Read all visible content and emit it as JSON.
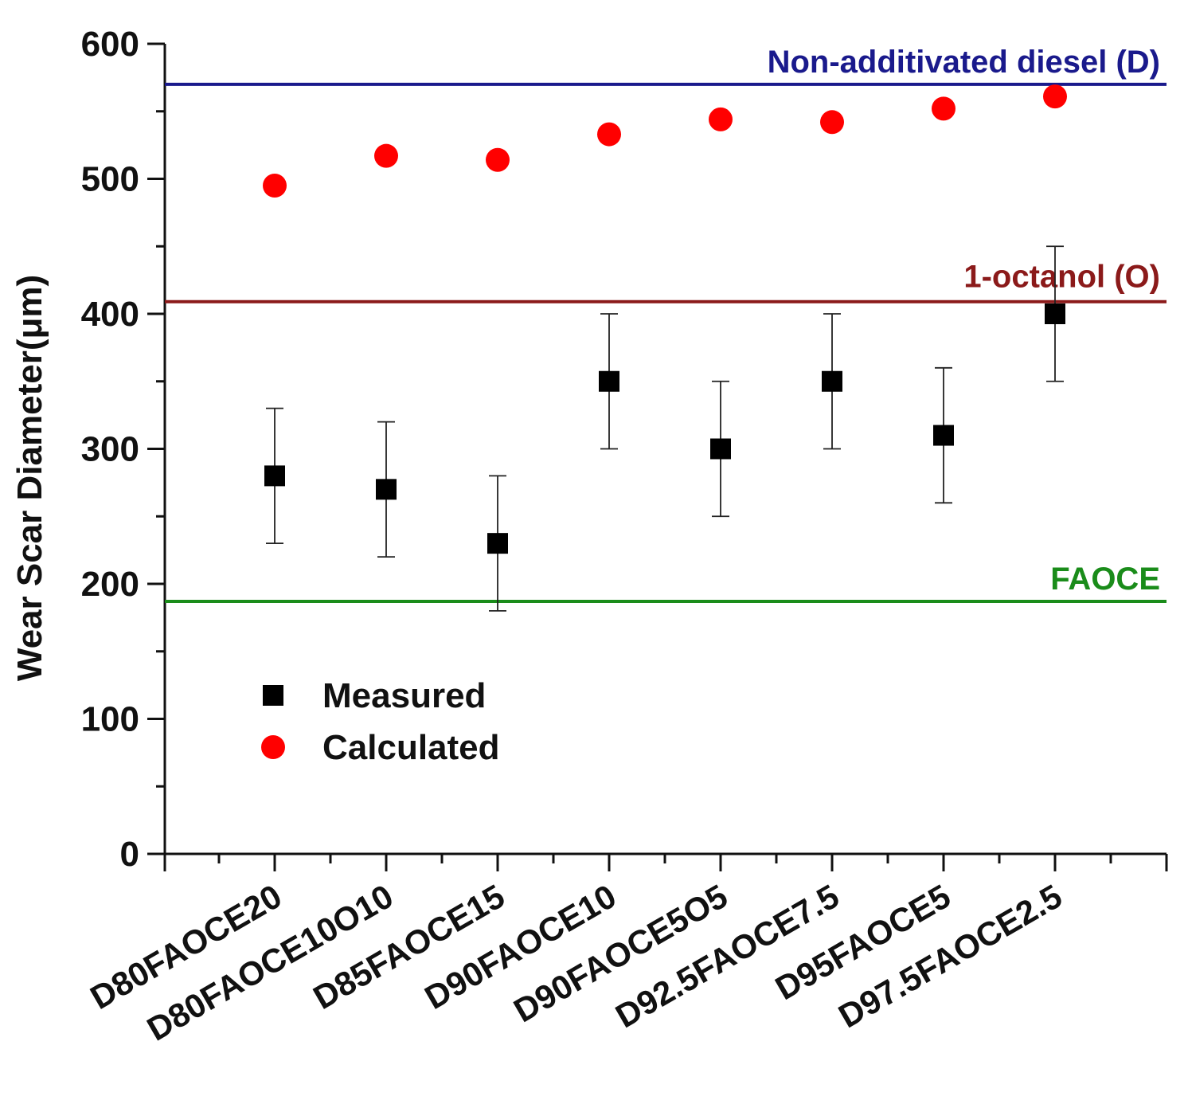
{
  "chart_data": {
    "type": "scatter",
    "categories": [
      "D80FAOCE20",
      "D80FAOCE10O10",
      "D85FAOCE15",
      "D90FAOCE10",
      "D90FAOCE5O5",
      "D92.5FAOCE7.5",
      "D95FAOCE5",
      "D97.5FAOCE2.5"
    ],
    "series": [
      {
        "name": "Measured",
        "marker": "square",
        "color": "#000000",
        "values": [
          280,
          270,
          230,
          350,
          300,
          350,
          310,
          400
        ],
        "error": [
          50,
          50,
          50,
          50,
          50,
          50,
          50,
          50
        ]
      },
      {
        "name": "Calculated",
        "marker": "circle",
        "color": "#ff0000",
        "values": [
          495,
          517,
          514,
          533,
          544,
          542,
          552,
          561
        ]
      }
    ],
    "reference_lines": [
      {
        "label": "Non-additivated diesel (D)",
        "value": 570,
        "color": "#1a1a8c"
      },
      {
        "label": "1-octanol (O)",
        "value": 409,
        "color": "#8b1a1a"
      },
      {
        "label": "FAOCE",
        "value": 187,
        "color": "#1a8c1a"
      }
    ],
    "ylabel": "Wear Scar Diameter(μm)",
    "xlabel": "",
    "title": "",
    "ylim": [
      0,
      600
    ],
    "yticks": [
      0,
      100,
      200,
      300,
      400,
      500,
      600
    ],
    "grid": false,
    "legend": "bottom-left"
  }
}
